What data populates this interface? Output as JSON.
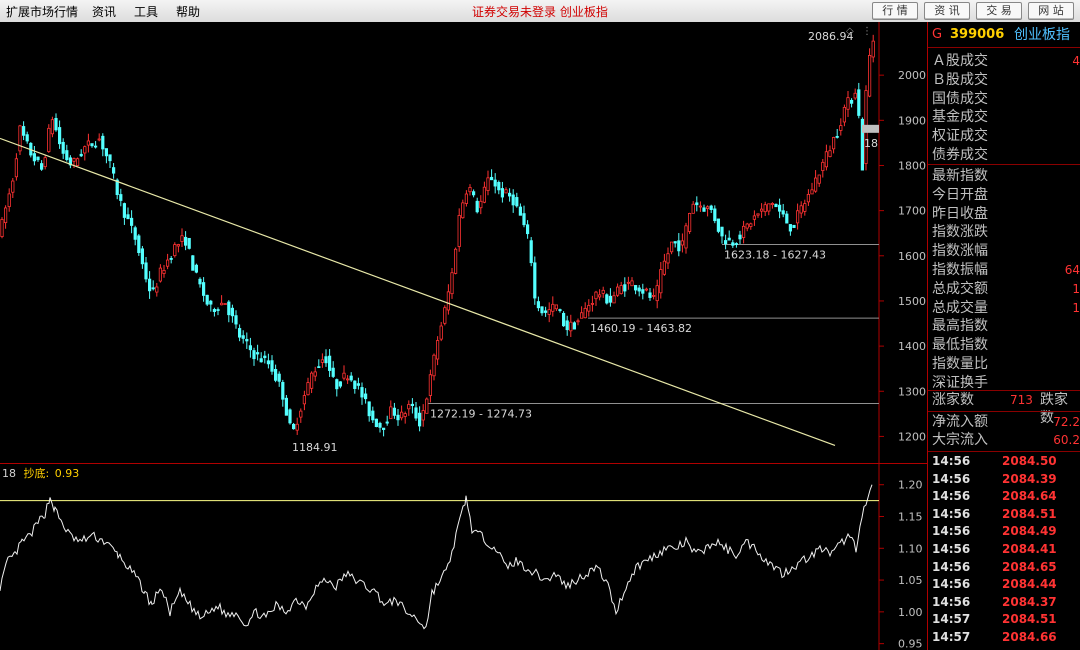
{
  "menubar": {
    "items": [
      "扩展市场行情",
      "资讯",
      "工具",
      "帮助"
    ],
    "center_title": "证券交易未登录  创业板指",
    "buttons": [
      "行 情",
      "资 讯",
      "交 易",
      "网 站"
    ]
  },
  "panel": {
    "g_label": "G",
    "code": "399006",
    "name": "创业板指",
    "rows_group1": [
      {
        "label": "Ａ股成交",
        "value": "4"
      },
      {
        "label": "Ｂ股成交",
        "value": ""
      },
      {
        "label": "国债成交",
        "value": ""
      },
      {
        "label": "基金成交",
        "value": ""
      },
      {
        "label": "权证成交",
        "value": ""
      },
      {
        "label": "债券成交",
        "value": ""
      }
    ],
    "rows_group2": [
      {
        "label": "最新指数",
        "value": ""
      },
      {
        "label": "今日开盘",
        "value": ""
      },
      {
        "label": "昨日收盘",
        "value": ""
      },
      {
        "label": "指数涨跌",
        "value": ""
      },
      {
        "label": "指数涨幅",
        "value": ""
      },
      {
        "label": "指数振幅",
        "value": "64"
      },
      {
        "label": "总成交额",
        "value": "1"
      },
      {
        "label": "总成交量",
        "value": "1"
      },
      {
        "label": "最高指数",
        "value": ""
      },
      {
        "label": "最低指数",
        "value": ""
      },
      {
        "label": "指数量比",
        "value": ""
      },
      {
        "label": "深证换手",
        "value": ""
      }
    ],
    "breadth": {
      "up_label": "涨家数",
      "up_value": "713",
      "down_label": "跌家数"
    },
    "flows": [
      {
        "label": "净流入额",
        "value": "72.2"
      },
      {
        "label": "大宗流入",
        "value": "60.2"
      }
    ],
    "ticks": [
      {
        "time": "14:56",
        "price": "2084.50"
      },
      {
        "time": "14:56",
        "price": "2084.39"
      },
      {
        "time": "14:56",
        "price": "2084.64"
      },
      {
        "time": "14:56",
        "price": "2084.51"
      },
      {
        "time": "14:56",
        "price": "2084.49"
      },
      {
        "time": "14:56",
        "price": "2084.41"
      },
      {
        "time": "14:56",
        "price": "2084.65"
      },
      {
        "time": "14:56",
        "price": "2084.44"
      },
      {
        "time": "14:56",
        "price": "2084.37"
      },
      {
        "time": "14:57",
        "price": "2084.51"
      },
      {
        "time": "14:57",
        "price": "2084.66"
      }
    ]
  },
  "chart_data": [
    {
      "type": "candlestick",
      "ylim": [
        1150,
        2100
      ],
      "y_ticks": [
        1200,
        1300,
        1400,
        1500,
        1600,
        1700,
        1800,
        1900,
        2000
      ],
      "path_points": [
        [
          0,
          1650
        ],
        [
          5,
          1700
        ],
        [
          12,
          1760
        ],
        [
          20,
          1880
        ],
        [
          30,
          1830
        ],
        [
          42,
          1790
        ],
        [
          52,
          1910
        ],
        [
          62,
          1830
        ],
        [
          72,
          1800
        ],
        [
          85,
          1840
        ],
        [
          100,
          1860
        ],
        [
          110,
          1800
        ],
        [
          120,
          1720
        ],
        [
          135,
          1640
        ],
        [
          145,
          1560
        ],
        [
          152,
          1510
        ],
        [
          160,
          1560
        ],
        [
          175,
          1620
        ],
        [
          185,
          1640
        ],
        [
          195,
          1560
        ],
        [
          210,
          1480
        ],
        [
          225,
          1500
        ],
        [
          240,
          1420
        ],
        [
          255,
          1380
        ],
        [
          270,
          1360
        ],
        [
          282,
          1300
        ],
        [
          292,
          1200
        ],
        [
          300,
          1260
        ],
        [
          312,
          1340
        ],
        [
          325,
          1380
        ],
        [
          335,
          1310
        ],
        [
          348,
          1340
        ],
        [
          360,
          1300
        ],
        [
          372,
          1240
        ],
        [
          382,
          1220
        ],
        [
          392,
          1260
        ],
        [
          400,
          1240
        ],
        [
          410,
          1270
        ],
        [
          420,
          1230
        ],
        [
          428,
          1300
        ],
        [
          438,
          1420
        ],
        [
          445,
          1480
        ],
        [
          452,
          1560
        ],
        [
          460,
          1700
        ],
        [
          468,
          1760
        ],
        [
          478,
          1700
        ],
        [
          490,
          1780
        ],
        [
          500,
          1740
        ],
        [
          512,
          1730
        ],
        [
          522,
          1680
        ],
        [
          530,
          1620
        ],
        [
          535,
          1500
        ],
        [
          545,
          1470
        ],
        [
          556,
          1490
        ],
        [
          566,
          1440
        ],
        [
          576,
          1450
        ],
        [
          588,
          1490
        ],
        [
          598,
          1520
        ],
        [
          610,
          1500
        ],
        [
          620,
          1530
        ],
        [
          632,
          1540
        ],
        [
          645,
          1520
        ],
        [
          655,
          1500
        ],
        [
          662,
          1570
        ],
        [
          672,
          1630
        ],
        [
          682,
          1620
        ],
        [
          692,
          1720
        ],
        [
          702,
          1710
        ],
        [
          712,
          1700
        ],
        [
          722,
          1640
        ],
        [
          732,
          1630
        ],
        [
          742,
          1650
        ],
        [
          752,
          1680
        ],
        [
          762,
          1700
        ],
        [
          772,
          1720
        ],
        [
          782,
          1690
        ],
        [
          792,
          1660
        ],
        [
          800,
          1700
        ],
        [
          810,
          1740
        ],
        [
          820,
          1790
        ],
        [
          830,
          1840
        ],
        [
          838,
          1880
        ],
        [
          845,
          1930
        ],
        [
          852,
          1950
        ],
        [
          857,
          1980
        ],
        [
          862,
          1780
        ],
        [
          866,
          1960
        ],
        [
          870,
          2050
        ],
        [
          874,
          2086
        ]
      ],
      "trendline": [
        [
          0,
          1860
        ],
        [
          835,
          1180
        ]
      ],
      "support_lines": [
        {
          "value": 1625,
          "label": "1623.18 - 1627.43",
          "x_label": 722
        },
        {
          "value": 1462,
          "label": "1460.19 - 1463.82",
          "x_label": 588
        },
        {
          "value": 1273,
          "label": "1272.19 - 1274.73",
          "x_label": 428
        }
      ],
      "annotations": [
        {
          "text": "1184.91",
          "value": 1184.91,
          "x": 292
        },
        {
          "text": "2086.94",
          "value": 2086.94,
          "x": 874
        }
      ],
      "edge_label": "18"
    },
    {
      "type": "line",
      "legend": {
        "prefix": "18",
        "name": "抄底:",
        "value": "0.93"
      },
      "ylim": [
        0.94,
        1.22
      ],
      "y_ticks": [
        0.95,
        1.0,
        1.05,
        1.1,
        1.15,
        1.2
      ],
      "reference_line": 1.175,
      "points": [
        [
          0,
          1.04
        ],
        [
          8,
          1.08
        ],
        [
          15,
          1.09
        ],
        [
          22,
          1.11
        ],
        [
          30,
          1.12
        ],
        [
          38,
          1.14
        ],
        [
          45,
          1.155
        ],
        [
          50,
          1.18
        ],
        [
          55,
          1.16
        ],
        [
          62,
          1.14
        ],
        [
          70,
          1.12
        ],
        [
          80,
          1.11
        ],
        [
          92,
          1.12
        ],
        [
          105,
          1.11
        ],
        [
          118,
          1.09
        ],
        [
          128,
          1.07
        ],
        [
          138,
          1.05
        ],
        [
          145,
          1.03
        ],
        [
          152,
          1.01
        ],
        [
          160,
          1.04
        ],
        [
          170,
          1.0
        ],
        [
          180,
          1.03
        ],
        [
          190,
          1.01
        ],
        [
          200,
          0.99
        ],
        [
          210,
          1.0
        ],
        [
          218,
          1.01
        ],
        [
          226,
          0.995
        ],
        [
          236,
          1.0
        ],
        [
          246,
          0.98
        ],
        [
          256,
          1.0
        ],
        [
          266,
          0.99
        ],
        [
          276,
          1.01
        ],
        [
          286,
          1.0
        ],
        [
          296,
          1.02
        ],
        [
          306,
          1.01
        ],
        [
          316,
          1.04
        ],
        [
          326,
          1.05
        ],
        [
          336,
          1.04
        ],
        [
          346,
          1.06
        ],
        [
          356,
          1.05
        ],
        [
          366,
          1.04
        ],
        [
          376,
          1.03
        ],
        [
          386,
          1.01
        ],
        [
          396,
          1.02
        ],
        [
          406,
          1.0
        ],
        [
          416,
          0.99
        ],
        [
          426,
          0.975
        ],
        [
          432,
          1.03
        ],
        [
          440,
          1.05
        ],
        [
          448,
          1.07
        ],
        [
          456,
          1.12
        ],
        [
          461,
          1.15
        ],
        [
          466,
          1.18
        ],
        [
          472,
          1.13
        ],
        [
          480,
          1.12
        ],
        [
          488,
          1.11
        ],
        [
          496,
          1.1
        ],
        [
          506,
          1.07
        ],
        [
          516,
          1.08
        ],
        [
          526,
          1.07
        ],
        [
          536,
          1.06
        ],
        [
          546,
          1.05
        ],
        [
          556,
          1.06
        ],
        [
          566,
          1.04
        ],
        [
          576,
          1.05
        ],
        [
          586,
          1.06
        ],
        [
          596,
          1.07
        ],
        [
          606,
          1.05
        ],
        [
          616,
          1.0
        ],
        [
          626,
          1.04
        ],
        [
          636,
          1.07
        ],
        [
          646,
          1.08
        ],
        [
          656,
          1.09
        ],
        [
          666,
          1.1
        ],
        [
          676,
          1.1
        ],
        [
          686,
          1.11
        ],
        [
          696,
          1.09
        ],
        [
          706,
          1.1
        ],
        [
          716,
          1.11
        ],
        [
          726,
          1.1
        ],
        [
          736,
          1.09
        ],
        [
          746,
          1.11
        ],
        [
          756,
          1.1
        ],
        [
          766,
          1.08
        ],
        [
          776,
          1.07
        ],
        [
          782,
          1.06
        ],
        [
          792,
          1.07
        ],
        [
          802,
          1.08
        ],
        [
          812,
          1.09
        ],
        [
          822,
          1.1
        ],
        [
          832,
          1.09
        ],
        [
          842,
          1.11
        ],
        [
          850,
          1.12
        ],
        [
          856,
          1.1
        ],
        [
          860,
          1.14
        ],
        [
          864,
          1.16
        ],
        [
          868,
          1.18
        ],
        [
          872,
          1.2
        ]
      ]
    }
  ]
}
